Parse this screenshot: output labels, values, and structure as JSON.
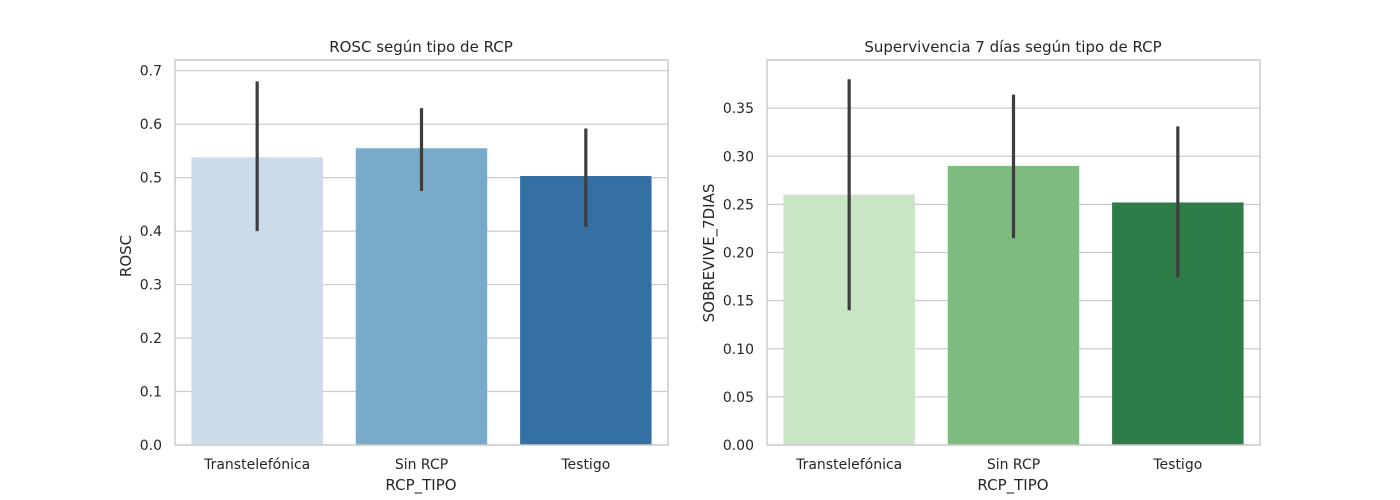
{
  "chart_data": [
    {
      "type": "bar",
      "title": "ROSC según tipo de RCP",
      "xlabel": "RCP_TIPO",
      "ylabel": "ROSC",
      "categories": [
        "Transtelefónica",
        "Sin RCP",
        "Testigo"
      ],
      "values": [
        0.538,
        0.555,
        0.503
      ],
      "error_bars": [
        [
          0.4,
          0.68
        ],
        [
          0.475,
          0.63
        ],
        [
          0.408,
          0.592
        ]
      ],
      "ylim": [
        0,
        0.72
      ],
      "yticks": [
        0.0,
        0.1,
        0.2,
        0.3,
        0.4,
        0.5,
        0.6,
        0.7
      ],
      "ytick_labels": [
        "0.0",
        "0.1",
        "0.2",
        "0.3",
        "0.4",
        "0.5",
        "0.6",
        "0.7"
      ],
      "colors": [
        "#cbdbea",
        "#78aac9",
        "#3470a4"
      ],
      "grid": true
    },
    {
      "type": "bar",
      "title": "Supervivencia 7 días según tipo de RCP",
      "xlabel": "RCP_TIPO",
      "ylabel": "SOBREVIVE_7DIAS",
      "categories": [
        "Transtelefónica",
        "Sin RCP",
        "Testigo"
      ],
      "values": [
        0.26,
        0.29,
        0.252
      ],
      "error_bars": [
        [
          0.14,
          0.38
        ],
        [
          0.215,
          0.364
        ],
        [
          0.174,
          0.331
        ]
      ],
      "ylim": [
        0,
        0.4
      ],
      "yticks": [
        0.0,
        0.05,
        0.1,
        0.15,
        0.2,
        0.25,
        0.3,
        0.35
      ],
      "ytick_labels": [
        "0.00",
        "0.05",
        "0.10",
        "0.15",
        "0.20",
        "0.25",
        "0.30",
        "0.35"
      ],
      "colors": [
        "#cae5c6",
        "#7dbb7e",
        "#2e7d48"
      ],
      "grid": true
    }
  ]
}
